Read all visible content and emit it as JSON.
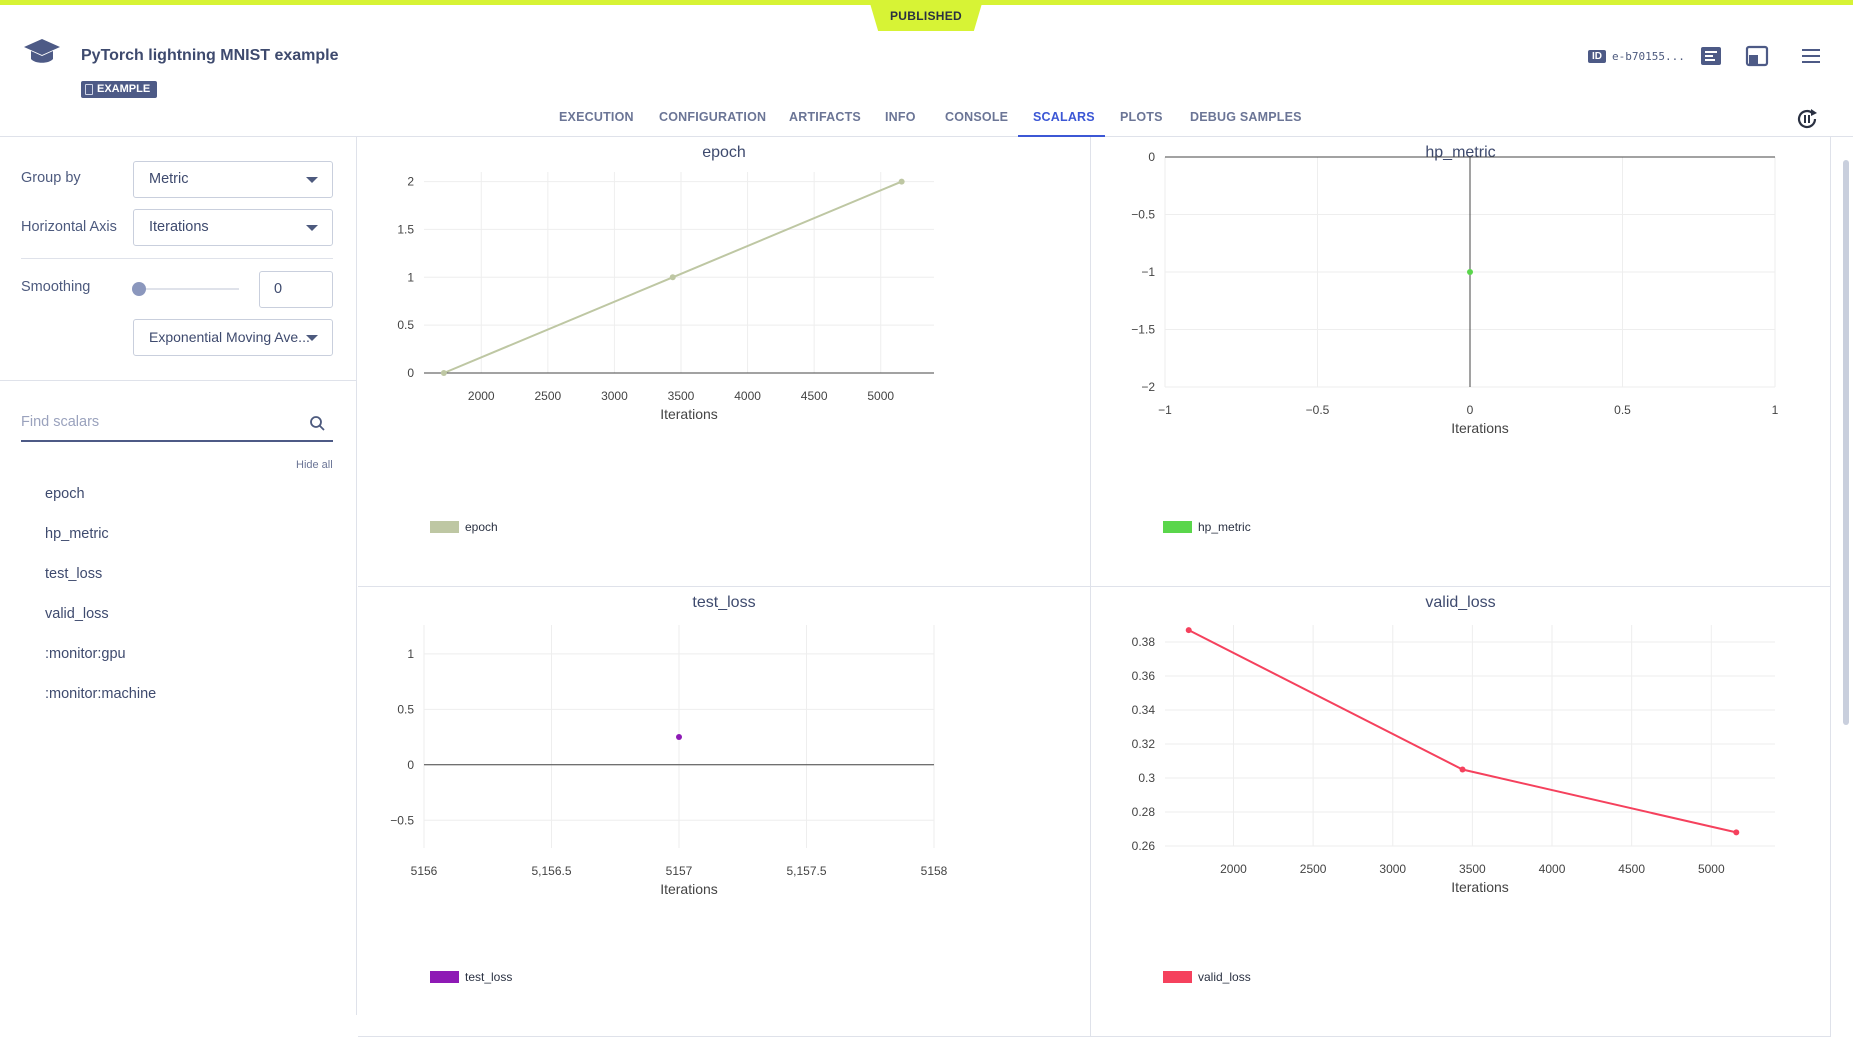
{
  "header": {
    "status": "PUBLISHED",
    "title": "PyTorch lightning MNIST example",
    "badge": "EXAMPLE",
    "id_tag": "ID",
    "id_value": "e-b70155..."
  },
  "tabs": [
    "EXECUTION",
    "CONFIGURATION",
    "ARTIFACTS",
    "INFO",
    "CONSOLE",
    "SCALARS",
    "PLOTS",
    "DEBUG SAMPLES"
  ],
  "active_tab": "SCALARS",
  "sidebar": {
    "group_by_label": "Group by",
    "group_by_value": "Metric",
    "horizontal_axis_label": "Horizontal Axis",
    "horizontal_axis_value": "Iterations",
    "smoothing_label": "Smoothing",
    "smoothing_value": "0",
    "smoothing_method": "Exponential Moving Ave...",
    "search_placeholder": "Find scalars",
    "hide_all": "Hide all",
    "metrics": [
      "epoch",
      "hp_metric",
      "test_loss",
      "valid_loss",
      ":monitor:gpu",
      ":monitor:machine"
    ]
  },
  "colors": {
    "accent": "#3c57d5",
    "published": "#d7f335",
    "epoch": "#bec7a3",
    "hp_metric": "#5ad64b",
    "test_loss": "#8e1ab5",
    "valid_loss": "#f5415d"
  },
  "chart_data": [
    {
      "type": "line",
      "title": "epoch",
      "xlabel": "Iterations",
      "x": [
        1719,
        3438,
        5157
      ],
      "series": [
        {
          "name": "epoch",
          "values": [
            0,
            1,
            2
          ]
        }
      ],
      "xlim": [
        1570,
        5400
      ],
      "ylim": [
        0,
        2.1
      ],
      "xticks": [
        2000,
        2500,
        3000,
        3500,
        4000,
        4500,
        5000
      ],
      "xtick_labels": [
        "2000",
        "2500",
        "3000",
        "3500",
        "4000",
        "4500",
        "5000"
      ],
      "yticks": [
        0,
        0.5,
        1,
        1.5,
        2
      ],
      "ytick_labels": [
        "0",
        "0.5",
        "1",
        "1.5",
        "2"
      ],
      "grid": true,
      "legend": "bottom-left"
    },
    {
      "type": "scatter",
      "title": "hp_metric",
      "xlabel": "Iterations",
      "x": [
        0
      ],
      "series": [
        {
          "name": "hp_metric",
          "values": [
            -1
          ]
        }
      ],
      "xlim": [
        -1,
        1
      ],
      "ylim": [
        -2,
        0
      ],
      "xticks": [
        -1,
        -0.5,
        0,
        0.5,
        1
      ],
      "xtick_labels": [
        "−1",
        "−0.5",
        "0",
        "0.5",
        "1"
      ],
      "yticks": [
        -2,
        -1.5,
        -1,
        -0.5,
        0
      ],
      "ytick_labels": [
        "−2",
        "−1.5",
        "−1",
        "−0.5",
        "0"
      ],
      "grid": true,
      "legend": "bottom-left"
    },
    {
      "type": "scatter",
      "title": "test_loss",
      "xlabel": "Iterations",
      "x": [
        5157
      ],
      "series": [
        {
          "name": "test_loss",
          "values": [
            0.25
          ]
        }
      ],
      "xlim": [
        5156,
        5158
      ],
      "ylim": [
        -0.75,
        1.26
      ],
      "xticks": [
        5156,
        5156.5,
        5157,
        5157.5,
        5158
      ],
      "xtick_labels": [
        "5156",
        "5,156.5",
        "5157",
        "5,157.5",
        "5158"
      ],
      "yticks": [
        -0.5,
        0,
        0.5,
        1
      ],
      "ytick_labels": [
        "−0.5",
        "0",
        "0.5",
        "1"
      ],
      "grid": true,
      "legend": "bottom-left"
    },
    {
      "type": "line",
      "title": "valid_loss",
      "xlabel": "Iterations",
      "x": [
        1719,
        3438,
        5157
      ],
      "series": [
        {
          "name": "valid_loss",
          "values": [
            0.387,
            0.305,
            0.268
          ]
        }
      ],
      "xlim": [
        1570,
        5400
      ],
      "ylim": [
        0.26,
        0.39
      ],
      "xticks": [
        2000,
        2500,
        3000,
        3500,
        4000,
        4500,
        5000
      ],
      "xtick_labels": [
        "2000",
        "2500",
        "3000",
        "3500",
        "4000",
        "4500",
        "5000"
      ],
      "yticks": [
        0.26,
        0.28,
        0.3,
        0.32,
        0.34,
        0.36,
        0.38
      ],
      "ytick_labels": [
        "0.26",
        "0.28",
        "0.3",
        "0.32",
        "0.34",
        "0.36",
        "0.38"
      ],
      "grid": true,
      "legend": "bottom-left"
    }
  ]
}
